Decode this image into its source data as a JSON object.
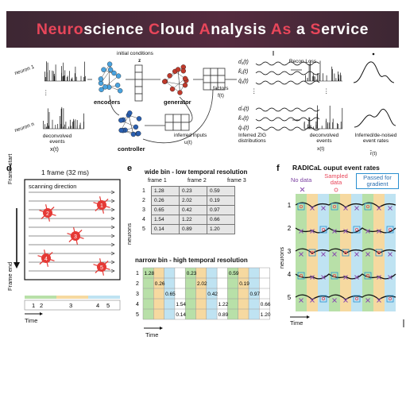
{
  "title": {
    "parts": [
      {
        "t": "Neuro",
        "h": true
      },
      {
        "t": "science ",
        "h": false
      },
      {
        "t": "C",
        "h": true
      },
      {
        "t": "loud ",
        "h": false
      },
      {
        "t": "A",
        "h": true
      },
      {
        "t": "nalysis ",
        "h": false
      },
      {
        "t": "As",
        "h": true
      },
      {
        "t": " a ",
        "h": false
      },
      {
        "t": "S",
        "h": true
      },
      {
        "t": "ervice",
        "h": false
      }
    ]
  },
  "colors": {
    "accent": "#e8465a",
    "banner": "#4a2a39",
    "encoder": "#4aa3df",
    "generator": "#c0392b",
    "controller": "#2a5fb0",
    "stripe_green": "#b8e0a8",
    "stripe_yellow": "#f6d9a0",
    "stripe_blue": "#bfe3f2",
    "neuron_red": "#e53935"
  },
  "model": {
    "neuron_1": "neuron 1",
    "neuron_n": "neuron n",
    "dots": "⋮",
    "deconvolved_events": "deconvolved events",
    "x_t": "x(t)",
    "encoders": "encoders",
    "initial_conditions": "initial conditions",
    "z": "z",
    "generator": "generator",
    "factors": "factors",
    "f_t": "f(t)",
    "controller": "controller",
    "inferred_inputs": "inferred inputs",
    "u_t": "u(t)",
    "zig_params": [
      "α̂₁(t)",
      "k̂₁(t)",
      "q̂₁(t)",
      "α̂ₙ(t)",
      "k̂ₙ(t)",
      "q̂ₙ(t)"
    ],
    "inferred_zig": "Inferred ZIG distributions",
    "recon_loss": "Recon Loss",
    "deconvolved_events_right": "deconvolved events",
    "x_t_right": "x(t)",
    "inferred_denoised": "Inferred/de-noised event rates",
    "r_t": "r̂(t)"
  },
  "panel_d": {
    "letter": "d",
    "title": "1 frame (32 ms)",
    "scanning": "scanning direction",
    "frame_start": "Frame start",
    "frame_end": "Frame end",
    "time": "Time",
    "neurons": [
      "1",
      "2",
      "3",
      "4",
      "5"
    ],
    "timeline_labels": [
      "1",
      "2",
      "3",
      "4",
      "5"
    ]
  },
  "panel_e": {
    "letter": "e",
    "wide_title": "wide bin - low temporal resolution",
    "frames": [
      "frame 1",
      "frame 2",
      "frame 3"
    ],
    "rows": [
      "1",
      "2",
      "3",
      "4",
      "5"
    ],
    "wide": [
      [
        "1.28",
        "0.23",
        "0.59"
      ],
      [
        "0.26",
        "2.02",
        "0.19"
      ],
      [
        "0.65",
        "0.42",
        "0.97"
      ],
      [
        "1.54",
        "1.22",
        "0.66"
      ],
      [
        "0.14",
        "0.89",
        "1.20"
      ]
    ],
    "neurons_label": "neurons",
    "narrow_title": "narrow bin - high temporal resolution",
    "time": "Time"
  },
  "panel_f": {
    "letter": "f",
    "title": "RADICaL ouput event rates",
    "no_data": "No data",
    "sampled": "Sampled data",
    "passed": "Passed for gradient",
    "rows": [
      "1",
      "2",
      "3",
      "4",
      "5"
    ],
    "neurons_label": "neurons",
    "time": "Time"
  }
}
